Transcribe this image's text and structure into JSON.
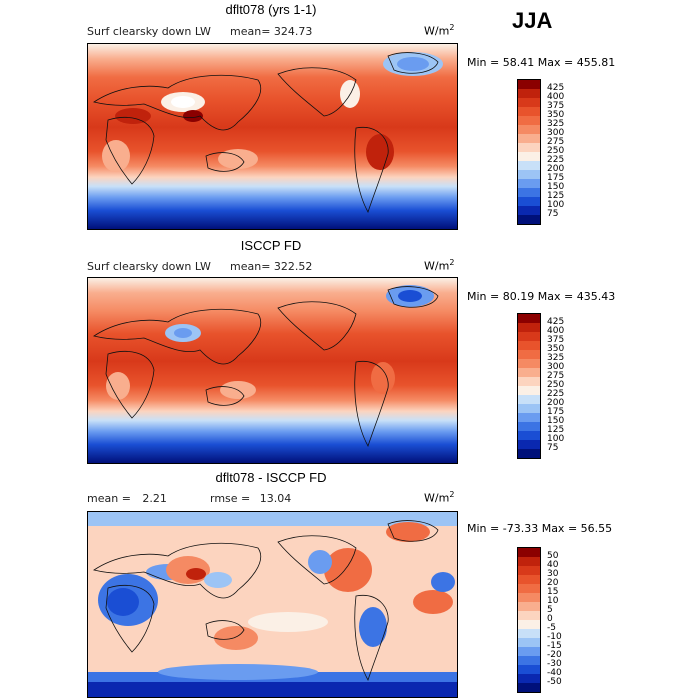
{
  "season": "JJA",
  "units": "W/m",
  "units_sup": "2",
  "panels": [
    {
      "title": "dflt078 (yrs 1-1)",
      "left_label": "Surf clearsky down LW",
      "mean_label": "mean=",
      "mean_value": "324.73",
      "rmse_label": "",
      "rmse_value": "",
      "min_label": "Min =",
      "min_value": "58.41",
      "max_label": "Max =",
      "max_value": "455.81"
    },
    {
      "title": "ISCCP FD",
      "left_label": "Surf clearsky down LW",
      "mean_label": "mean=",
      "mean_value": "322.52",
      "rmse_label": "",
      "rmse_value": "",
      "min_label": "Min =",
      "min_value": "80.19",
      "max_label": "Max =",
      "max_value": "435.43"
    },
    {
      "title": "dflt078 - ISCCP FD",
      "left_label": "",
      "mean_label": "mean =",
      "mean_value": "2.21",
      "rmse_label": "rmse =",
      "rmse_value": "13.04",
      "min_label": "Min =",
      "min_value": "-73.33",
      "max_label": "Max =",
      "max_value": "56.55"
    }
  ],
  "colorbar_abs": {
    "labels": [
      "425",
      "400",
      "375",
      "350",
      "325",
      "300",
      "275",
      "250",
      "225",
      "200",
      "175",
      "150",
      "125",
      "100",
      "75"
    ],
    "colors": [
      "#8b0000",
      "#c0220c",
      "#d8391a",
      "#e8532c",
      "#f06c43",
      "#f58a63",
      "#f9ae8e",
      "#fcd4bf",
      "#fbf0e6",
      "#c8e0f8",
      "#9cc4f5",
      "#6a9cf0",
      "#3c74e4",
      "#1a4ed4",
      "#0a28b0",
      "#00107a"
    ]
  },
  "colorbar_diff": {
    "labels": [
      "50",
      "40",
      "30",
      "20",
      "15",
      "10",
      "5",
      "0",
      "-5",
      "-10",
      "-15",
      "-20",
      "-30",
      "-40",
      "-50"
    ],
    "colors": [
      "#8b0000",
      "#c0220c",
      "#d8391a",
      "#e8532c",
      "#f06c43",
      "#f58a63",
      "#f9ae8e",
      "#fcd4bf",
      "#fbf0e6",
      "#c8e0f8",
      "#9cc4f5",
      "#6a9cf0",
      "#3c74e4",
      "#1a4ed4",
      "#0a28b0",
      "#00107a"
    ]
  }
}
